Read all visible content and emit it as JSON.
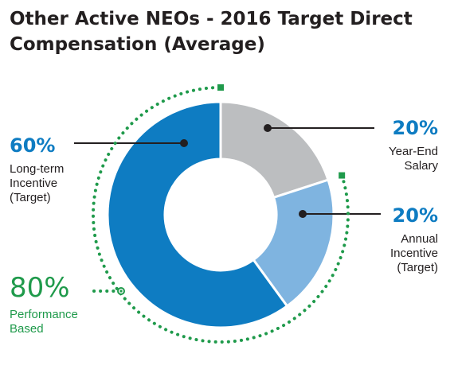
{
  "chart_data": {
    "type": "pie",
    "title": "Other Active NEOs - 2016 Target Direct Compensation (Average)",
    "slices": [
      {
        "name": "Year-End Salary",
        "value": 20,
        "label": "20%",
        "color": "#bcbec0",
        "text_lines": [
          "Year-End",
          "Salary"
        ]
      },
      {
        "name": "Annual Incentive (Target)",
        "value": 20,
        "label": "20%",
        "color": "#7fb4e0",
        "text_lines": [
          "Annual",
          "Incentive",
          "(Target)"
        ]
      },
      {
        "name": "Long-term Incentive (Target)",
        "value": 60,
        "label": "60%",
        "color": "#0e7cc2",
        "text_lines": [
          "Long-term",
          "Incentive",
          "(Target)"
        ]
      }
    ],
    "annotation": {
      "label": "80%",
      "text_lines": [
        "Performance",
        "Based"
      ],
      "covers": [
        "Annual Incentive (Target)",
        "Long-term Incentive (Target)"
      ],
      "color": "#1f9a4b"
    }
  }
}
